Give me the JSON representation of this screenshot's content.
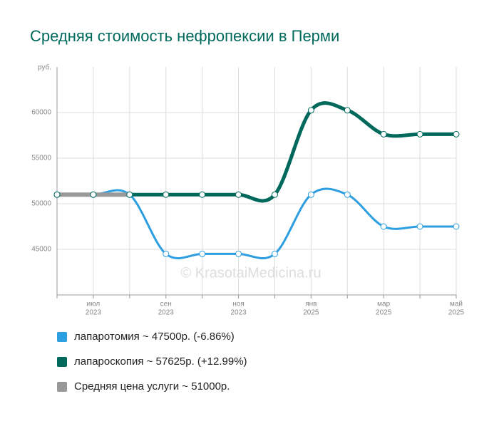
{
  "chart_data": {
    "type": "line",
    "title": "Средняя стоимость нефропексии в Перми",
    "y_label": "руб.",
    "watermark": "© KrasotaiMedicina.ru",
    "categories": [
      null,
      "июл",
      null,
      "сен",
      null,
      "ноя",
      null,
      "янв",
      null,
      "мар",
      null,
      "май"
    ],
    "category_years": [
      null,
      "2023",
      null,
      "2023",
      null,
      "2023",
      null,
      "2025",
      null,
      "2025",
      null,
      "2025"
    ],
    "ylim": [
      40000,
      65000
    ],
    "yticks": [
      45000,
      50000,
      55000,
      60000
    ],
    "grid": true,
    "series": [
      {
        "name": "лапаротомия ~ 47500р. (-6.86%)",
        "color": "#2d9ee0",
        "values": [
          51000,
          51000,
          51000,
          44500,
          44500,
          44500,
          44500,
          51000,
          51000,
          47500,
          47500,
          47500
        ]
      },
      {
        "name": "лапароскопия ~ 57625р. (+12.99%)",
        "color": "#00695c",
        "values": [
          51000,
          51000,
          51000,
          51000,
          51000,
          51000,
          51000,
          60250,
          60250,
          57625,
          57625,
          57625
        ]
      },
      {
        "name": "Средняя цена услуги ~ 51000р.",
        "color": "#999999",
        "values": [
          51000,
          51000,
          51000,
          null,
          null,
          null,
          null,
          null,
          null,
          null,
          null,
          null
        ]
      }
    ]
  }
}
